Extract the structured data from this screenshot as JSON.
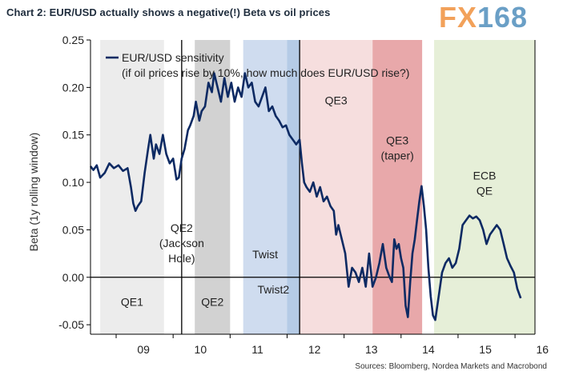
{
  "header": {
    "title": "Chart 2: EUR/USD actually shows a negative(!) Beta vs oil prices",
    "logo_part1": "FX",
    "logo_part2": "168"
  },
  "footer": {
    "source": "Sources: Bloomberg, Nordea Markets and Macrobond"
  },
  "colors": {
    "line": "#0d2a63",
    "qe_gray": "#ececec",
    "qe_gray_dark": "#d2d2d2",
    "twist_blue": "#cfdcef",
    "twist2_blue": "#b5cbe6",
    "qe3_pink": "#f6dede",
    "taper_red": "#e8a8aa",
    "ecb_green": "#e6efd8"
  },
  "chart_data": {
    "type": "line",
    "title": "Chart 2: EUR/USD actually shows a negative(!) Beta vs oil prices",
    "xlabel": "",
    "ylabel": "Beta (1y rolling window)",
    "xlim": [
      2008.55,
      2016.35
    ],
    "ylim": [
      -0.06,
      0.25
    ],
    "yticks": [
      -0.05,
      0.0,
      0.05,
      0.1,
      0.15,
      0.2,
      0.25
    ],
    "ytick_labels": [
      "-0.05",
      "0.00",
      "0.05",
      "0.10",
      "0.15",
      "0.20",
      "0.25"
    ],
    "xtick_labels": [
      {
        "x": 2009,
        "label": "09"
      },
      {
        "x": 2010,
        "label": "10"
      },
      {
        "x": 2011,
        "label": "11"
      },
      {
        "x": 2012,
        "label": "12"
      },
      {
        "x": 2013,
        "label": "13"
      },
      {
        "x": 2014,
        "label": "14"
      },
      {
        "x": 2015,
        "label": "15"
      },
      {
        "x": 2016,
        "label": "16"
      }
    ],
    "legend": {
      "line1": "EUR/USD sensitivity",
      "line2": "(if oil prices rise by 10%, how much does EUR/USD rise?)",
      "placement": "top-left"
    },
    "shaded_regions": [
      {
        "name": "QE1",
        "start": 2008.72,
        "end": 2009.84,
        "color": "qe_gray",
        "labels": [
          "QE1"
        ],
        "label_y": -0.03
      },
      {
        "name": "QE2",
        "start": 2010.38,
        "end": 2011.0,
        "color": "qe_gray_dark",
        "labels": [
          "QE2"
        ],
        "label_y": -0.03
      },
      {
        "name": "Twist",
        "start": 2011.23,
        "end": 2012.0,
        "color": "twist_blue",
        "labels": [
          "Twist"
        ],
        "label_y": 0.02
      },
      {
        "name": "Twist2",
        "start": 2012.0,
        "end": 2012.22,
        "color": "twist2_blue",
        "labels": [
          "Twist2"
        ],
        "label_y": -0.017
      },
      {
        "name": "QE3",
        "start": 2012.22,
        "end": 2013.5,
        "color": "qe3_pink",
        "labels": [
          "QE3"
        ],
        "label_y": 0.182
      },
      {
        "name": "QE3 taper",
        "start": 2013.5,
        "end": 2014.37,
        "color": "taper_red",
        "labels": [
          "QE3",
          "(taper)"
        ],
        "label_y": 0.14
      },
      {
        "name": "ECB QE",
        "start": 2014.58,
        "end": 2016.35,
        "color": "ecb_green",
        "labels": [
          "ECB",
          "QE"
        ],
        "label_y": 0.103
      }
    ],
    "vertical_lines": [
      2010.15,
      2012.22
    ],
    "annotation_qe2_jackson": {
      "lines": [
        "QE2",
        "(Jackson",
        "Hole)"
      ],
      "x": 2010.15,
      "y": 0.048
    },
    "series": [
      {
        "name": "EUR/USD sensitivity",
        "x": [
          2008.55,
          2008.6,
          2008.66,
          2008.72,
          2008.8,
          2008.88,
          2008.96,
          2009.04,
          2009.12,
          2009.2,
          2009.26,
          2009.3,
          2009.34,
          2009.38,
          2009.44,
          2009.5,
          2009.56,
          2009.6,
          2009.66,
          2009.7,
          2009.76,
          2009.82,
          2009.88,
          2009.94,
          2010.0,
          2010.06,
          2010.1,
          2010.15,
          2010.2,
          2010.26,
          2010.3,
          2010.36,
          2010.4,
          2010.46,
          2010.5,
          2010.56,
          2010.62,
          2010.68,
          2010.72,
          2010.78,
          2010.84,
          2010.9,
          2010.96,
          2011.02,
          2011.08,
          2011.14,
          2011.2,
          2011.26,
          2011.32,
          2011.38,
          2011.44,
          2011.5,
          2011.56,
          2011.62,
          2011.68,
          2011.74,
          2011.8,
          2011.86,
          2011.92,
          2011.98,
          2012.04,
          2012.1,
          2012.16,
          2012.22,
          2012.26,
          2012.3,
          2012.34,
          2012.4,
          2012.46,
          2012.52,
          2012.58,
          2012.64,
          2012.7,
          2012.76,
          2012.82,
          2012.86,
          2012.9,
          2012.96,
          2013.02,
          2013.08,
          2013.14,
          2013.2,
          2013.26,
          2013.32,
          2013.38,
          2013.44,
          2013.5,
          2013.56,
          2013.62,
          2013.68,
          2013.74,
          2013.8,
          2013.84,
          2013.88,
          2013.92,
          2013.96,
          2014.0,
          2014.04,
          2014.08,
          2014.12,
          2014.16,
          2014.2,
          2014.24,
          2014.28,
          2014.32,
          2014.36,
          2014.4,
          2014.44,
          2014.48,
          2014.52,
          2014.56,
          2014.6,
          2014.66,
          2014.72,
          2014.78,
          2014.84,
          2014.9,
          2014.96,
          2015.02,
          2015.08,
          2015.14,
          2015.2,
          2015.26,
          2015.32,
          2015.38,
          2015.44,
          2015.5,
          2015.56,
          2015.62,
          2015.68,
          2015.74,
          2015.8,
          2015.86,
          2015.92,
          2015.98,
          2016.04,
          2016.1
        ],
        "values": [
          0.117,
          0.113,
          0.118,
          0.105,
          0.11,
          0.12,
          0.115,
          0.118,
          0.112,
          0.115,
          0.095,
          0.078,
          0.07,
          0.075,
          0.08,
          0.11,
          0.135,
          0.15,
          0.125,
          0.14,
          0.13,
          0.15,
          0.13,
          0.12,
          0.125,
          0.103,
          0.105,
          0.125,
          0.135,
          0.155,
          0.16,
          0.17,
          0.185,
          0.165,
          0.175,
          0.18,
          0.205,
          0.195,
          0.215,
          0.2,
          0.185,
          0.21,
          0.19,
          0.205,
          0.185,
          0.2,
          0.19,
          0.215,
          0.2,
          0.205,
          0.185,
          0.18,
          0.19,
          0.2,
          0.175,
          0.18,
          0.17,
          0.165,
          0.158,
          0.16,
          0.15,
          0.145,
          0.14,
          0.145,
          0.12,
          0.1,
          0.095,
          0.09,
          0.1,
          0.085,
          0.095,
          0.08,
          0.085,
          0.075,
          0.07,
          0.045,
          0.055,
          0.04,
          0.025,
          -0.01,
          0.01,
          0.005,
          -0.005,
          0.01,
          -0.01,
          0.025,
          -0.01,
          0.0,
          0.015,
          0.035,
          0.01,
          0.0,
          -0.005,
          0.04,
          0.03,
          0.035,
          0.02,
          0.01,
          -0.03,
          -0.042,
          -0.005,
          0.025,
          0.04,
          0.06,
          0.08,
          0.096,
          0.075,
          0.05,
          0.01,
          -0.02,
          -0.04,
          -0.045,
          -0.02,
          0.005,
          0.015,
          0.02,
          0.01,
          0.015,
          0.03,
          0.055,
          0.06,
          0.065,
          0.062,
          0.064,
          0.06,
          0.05,
          0.035,
          0.045,
          0.05,
          0.055,
          0.05,
          0.035,
          0.02,
          0.012,
          0.005,
          -0.012,
          -0.022
        ]
      }
    ]
  }
}
